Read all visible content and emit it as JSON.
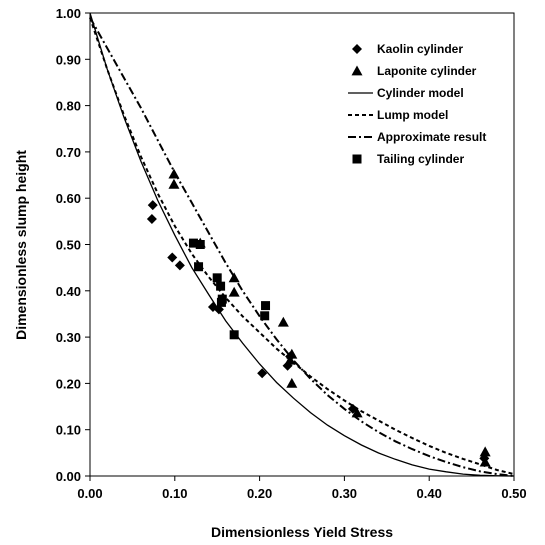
{
  "chart_data": {
    "type": "scatter",
    "title": "",
    "xlabel": "Dimensionless Yield Stress",
    "ylabel": "Dimensionless slump height",
    "xlim": [
      0,
      0.5
    ],
    "ylim": [
      0,
      1.0
    ],
    "x_ticks": [
      "0.00",
      "0.10",
      "0.20",
      "0.30",
      "0.40",
      "0.50"
    ],
    "y_ticks": [
      "0.00",
      "0.10",
      "0.20",
      "0.30",
      "0.40",
      "0.50",
      "0.60",
      "0.70",
      "0.80",
      "0.90",
      "1.00"
    ],
    "grid": false,
    "legend_position": "top-right",
    "series": [
      {
        "name": "Kaolin cylinder",
        "kind": "marker",
        "marker": "diamond",
        "color": "#000000",
        "points": [
          [
            0.074,
            0.585
          ],
          [
            0.073,
            0.555
          ],
          [
            0.097,
            0.472
          ],
          [
            0.106,
            0.455
          ],
          [
            0.145,
            0.365
          ],
          [
            0.152,
            0.36
          ],
          [
            0.203,
            0.222
          ],
          [
            0.233,
            0.238
          ],
          [
            0.236,
            0.258
          ],
          [
            0.31,
            0.145
          ],
          [
            0.465,
            0.038
          ]
        ]
      },
      {
        "name": "Laponite cylinder",
        "kind": "marker",
        "marker": "triangle",
        "color": "#000000",
        "points": [
          [
            0.099,
            0.652
          ],
          [
            0.099,
            0.63
          ],
          [
            0.13,
            0.503
          ],
          [
            0.17,
            0.428
          ],
          [
            0.17,
            0.397
          ],
          [
            0.228,
            0.332
          ],
          [
            0.236,
            0.25
          ],
          [
            0.238,
            0.263
          ],
          [
            0.238,
            0.2
          ],
          [
            0.315,
            0.136
          ],
          [
            0.466,
            0.052
          ],
          [
            0.466,
            0.03
          ]
        ]
      },
      {
        "name": "Cylinder  model",
        "kind": "line",
        "dash": "solid",
        "color": "#000000",
        "points": [
          [
            0.0,
            1.0
          ],
          [
            0.02,
            0.88
          ],
          [
            0.04,
            0.775
          ],
          [
            0.06,
            0.68
          ],
          [
            0.08,
            0.595
          ],
          [
            0.1,
            0.52
          ],
          [
            0.12,
            0.45
          ],
          [
            0.14,
            0.392
          ],
          [
            0.16,
            0.335
          ],
          [
            0.18,
            0.287
          ],
          [
            0.2,
            0.242
          ],
          [
            0.22,
            0.202
          ],
          [
            0.24,
            0.168
          ],
          [
            0.26,
            0.137
          ],
          [
            0.28,
            0.11
          ],
          [
            0.3,
            0.087
          ],
          [
            0.32,
            0.067
          ],
          [
            0.34,
            0.05
          ],
          [
            0.36,
            0.036
          ],
          [
            0.38,
            0.024
          ],
          [
            0.4,
            0.015
          ],
          [
            0.42,
            0.009
          ],
          [
            0.44,
            0.004
          ],
          [
            0.46,
            0.0015
          ],
          [
            0.48,
            0.0004
          ],
          [
            0.5,
            0.0
          ]
        ]
      },
      {
        "name": "Lump model",
        "kind": "line",
        "dash": "dotted",
        "color": "#000000",
        "points": [
          [
            0.0,
            0.99
          ],
          [
            0.02,
            0.88
          ],
          [
            0.04,
            0.78
          ],
          [
            0.06,
            0.69
          ],
          [
            0.08,
            0.61
          ],
          [
            0.1,
            0.54
          ],
          [
            0.12,
            0.48
          ],
          [
            0.14,
            0.43
          ],
          [
            0.16,
            0.385
          ],
          [
            0.18,
            0.345
          ],
          [
            0.2,
            0.31
          ],
          [
            0.22,
            0.275
          ],
          [
            0.24,
            0.245
          ],
          [
            0.26,
            0.215
          ],
          [
            0.28,
            0.188
          ],
          [
            0.3,
            0.163
          ],
          [
            0.32,
            0.14
          ],
          [
            0.34,
            0.12
          ],
          [
            0.36,
            0.1
          ],
          [
            0.38,
            0.082
          ],
          [
            0.4,
            0.065
          ],
          [
            0.42,
            0.05
          ],
          [
            0.44,
            0.037
          ],
          [
            0.46,
            0.025
          ],
          [
            0.48,
            0.013
          ],
          [
            0.5,
            0.004
          ]
        ]
      },
      {
        "name": "Approximate result",
        "kind": "line",
        "dash": "dashdot",
        "color": "#000000",
        "points": [
          [
            0.0,
            0.99
          ],
          [
            0.02,
            0.925
          ],
          [
            0.04,
            0.86
          ],
          [
            0.06,
            0.795
          ],
          [
            0.08,
            0.725
          ],
          [
            0.1,
            0.655
          ],
          [
            0.12,
            0.59
          ],
          [
            0.14,
            0.525
          ],
          [
            0.16,
            0.46
          ],
          [
            0.18,
            0.4
          ],
          [
            0.2,
            0.345
          ],
          [
            0.22,
            0.295
          ],
          [
            0.24,
            0.25
          ],
          [
            0.26,
            0.21
          ],
          [
            0.28,
            0.175
          ],
          [
            0.3,
            0.145
          ],
          [
            0.32,
            0.118
          ],
          [
            0.34,
            0.095
          ],
          [
            0.36,
            0.075
          ],
          [
            0.38,
            0.058
          ],
          [
            0.4,
            0.043
          ],
          [
            0.42,
            0.03
          ],
          [
            0.44,
            0.019
          ],
          [
            0.46,
            0.01
          ],
          [
            0.48,
            0.004
          ],
          [
            0.5,
            0.0
          ]
        ]
      },
      {
        "name": "Tailing cylinder",
        "kind": "marker",
        "marker": "square",
        "color": "#000000",
        "points": [
          [
            0.122,
            0.503
          ],
          [
            0.13,
            0.5
          ],
          [
            0.128,
            0.452
          ],
          [
            0.15,
            0.428
          ],
          [
            0.154,
            0.41
          ],
          [
            0.156,
            0.382
          ],
          [
            0.155,
            0.375
          ],
          [
            0.17,
            0.305
          ],
          [
            0.207,
            0.368
          ],
          [
            0.206,
            0.346
          ]
        ]
      }
    ]
  }
}
